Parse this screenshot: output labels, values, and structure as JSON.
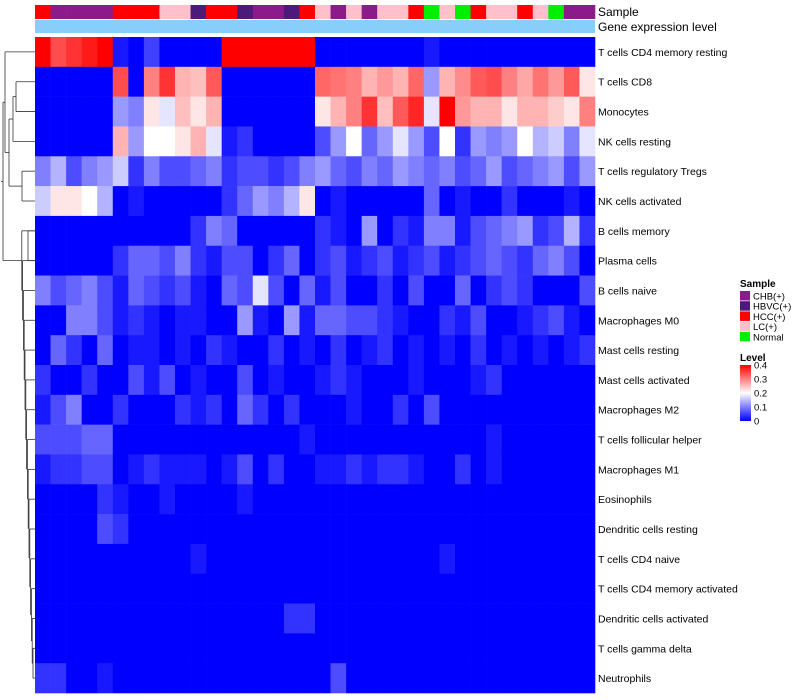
{
  "chart_data": {
    "type": "heatmap",
    "title": "",
    "annotation_tracks": [
      "Sample",
      "Gene expression level"
    ],
    "rows": [
      "T cells CD4 memory resting",
      "T cells CD8",
      "Monocytes",
      "NK cells resting",
      "T cells regulatory  Tregs",
      "NK cells activated",
      "B cells memory",
      "Plasma cells",
      "B cells naive",
      "Macrophages M0",
      "Mast cells resting",
      "Mast cells activated",
      "Macrophages M2",
      "T cells follicular helper",
      "Macrophages M1",
      "Eosinophils",
      "Dendritic cells resting",
      "T cells CD4 naive",
      "T cells CD4 memory activated",
      "Dendritic cells activated",
      "T cells gamma delta",
      "Neutrophils"
    ],
    "sample_groups": [
      "HCC(+)",
      "CHB(+)",
      "CHB(+)",
      "CHB(+)",
      "CHB(+)",
      "HCC(+)",
      "HCC(+)",
      "HCC(+)",
      "LC(+)",
      "LC(+)",
      "HBVC(+)",
      "HCC(+)",
      "HCC(+)",
      "HBVC(+)",
      "CHB(+)",
      "CHB(+)",
      "HBVC(+)",
      "HCC(+)",
      "LC(+)",
      "CHB(+)",
      "LC(+)",
      "CHB(+)",
      "LC(+)",
      "LC(+)",
      "HCC(+)",
      "Normal",
      "LC(+)",
      "Normal",
      "HCC(+)",
      "LC(+)",
      "LC(+)",
      "HCC(+)",
      "LC(+)",
      "Normal",
      "CHB(+)",
      "CHB(+)"
    ],
    "values": [
      [
        0.4,
        0.34,
        0.36,
        0.38,
        0.4,
        0.02,
        0.0,
        0.05,
        0.0,
        0.0,
        0.0,
        0.0,
        0.4,
        0.4,
        0.4,
        0.4,
        0.4,
        0.4,
        0.0,
        0.0,
        0.0,
        0.0,
        0.0,
        0.0,
        0.0,
        0.02,
        0.0,
        0.0,
        0.0,
        0.0,
        0.0,
        0.0,
        0.0,
        0.0,
        0.0,
        0.0
      ],
      [
        0.0,
        0.0,
        0.0,
        0.0,
        0.0,
        0.34,
        0.0,
        0.3,
        0.36,
        0.26,
        0.25,
        0.33,
        0.0,
        0.0,
        0.0,
        0.0,
        0.0,
        0.0,
        0.32,
        0.31,
        0.3,
        0.26,
        0.28,
        0.26,
        0.32,
        0.12,
        0.26,
        0.29,
        0.33,
        0.34,
        0.3,
        0.27,
        0.31,
        0.28,
        0.33,
        0.22
      ],
      [
        0.0,
        0.0,
        0.0,
        0.0,
        0.0,
        0.12,
        0.1,
        0.22,
        0.18,
        0.25,
        0.22,
        0.26,
        0.0,
        0.0,
        0.0,
        0.0,
        0.0,
        0.0,
        0.22,
        0.26,
        0.3,
        0.36,
        0.25,
        0.33,
        0.37,
        0.18,
        0.4,
        0.28,
        0.26,
        0.26,
        0.22,
        0.26,
        0.26,
        0.24,
        0.22,
        0.3
      ],
      [
        0.0,
        0.0,
        0.0,
        0.0,
        0.0,
        0.26,
        0.12,
        0.2,
        0.2,
        0.22,
        0.26,
        0.18,
        0.02,
        0.04,
        0.0,
        0.0,
        0.0,
        0.0,
        0.06,
        0.12,
        0.2,
        0.08,
        0.12,
        0.18,
        0.12,
        0.06,
        0.2,
        0.04,
        0.12,
        0.1,
        0.12,
        0.2,
        0.14,
        0.16,
        0.1,
        0.18
      ],
      [
        0.1,
        0.14,
        0.06,
        0.1,
        0.12,
        0.16,
        0.04,
        0.1,
        0.06,
        0.06,
        0.08,
        0.1,
        0.04,
        0.06,
        0.06,
        0.04,
        0.06,
        0.1,
        0.12,
        0.08,
        0.06,
        0.1,
        0.08,
        0.12,
        0.1,
        0.08,
        0.1,
        0.06,
        0.08,
        0.12,
        0.06,
        0.08,
        0.1,
        0.12,
        0.06,
        0.12
      ],
      [
        0.16,
        0.22,
        0.22,
        0.2,
        0.14,
        0.0,
        0.02,
        0.0,
        0.0,
        0.0,
        0.0,
        0.0,
        0.04,
        0.08,
        0.12,
        0.1,
        0.14,
        0.22,
        0.0,
        0.02,
        0.0,
        0.0,
        0.0,
        0.0,
        0.0,
        0.08,
        0.0,
        0.02,
        0.0,
        0.0,
        0.04,
        0.0,
        0.0,
        0.0,
        0.02,
        0.0
      ],
      [
        0.0,
        0.0,
        0.0,
        0.0,
        0.0,
        0.0,
        0.0,
        0.0,
        0.0,
        0.0,
        0.04,
        0.1,
        0.08,
        0.0,
        0.0,
        0.0,
        0.0,
        0.0,
        0.04,
        0.02,
        0.0,
        0.12,
        0.0,
        0.04,
        0.02,
        0.1,
        0.1,
        0.02,
        0.06,
        0.08,
        0.1,
        0.12,
        0.04,
        0.06,
        0.14,
        0.04
      ],
      [
        0.0,
        0.0,
        0.0,
        0.0,
        0.0,
        0.04,
        0.08,
        0.08,
        0.06,
        0.1,
        0.04,
        0.02,
        0.06,
        0.06,
        0.0,
        0.04,
        0.08,
        0.0,
        0.04,
        0.06,
        0.02,
        0.04,
        0.06,
        0.02,
        0.04,
        0.06,
        0.02,
        0.04,
        0.06,
        0.08,
        0.06,
        0.04,
        0.08,
        0.1,
        0.06,
        0.0
      ],
      [
        0.1,
        0.06,
        0.08,
        0.1,
        0.06,
        0.02,
        0.08,
        0.06,
        0.04,
        0.06,
        0.02,
        0.0,
        0.08,
        0.06,
        0.18,
        0.06,
        0.0,
        0.08,
        0.02,
        0.06,
        0.0,
        0.0,
        0.04,
        0.0,
        0.06,
        0.0,
        0.0,
        0.08,
        0.0,
        0.04,
        0.06,
        0.04,
        0.0,
        0.0,
        0.0,
        0.06
      ],
      [
        0.0,
        0.0,
        0.1,
        0.1,
        0.06,
        0.02,
        0.04,
        0.02,
        0.0,
        0.02,
        0.02,
        0.0,
        0.0,
        0.12,
        0.02,
        0.0,
        0.12,
        0.02,
        0.08,
        0.08,
        0.06,
        0.06,
        0.04,
        0.02,
        0.0,
        0.0,
        0.04,
        0.02,
        0.06,
        0.0,
        0.0,
        0.02,
        0.04,
        0.06,
        0.02,
        0.0
      ],
      [
        0.0,
        0.08,
        0.04,
        0.0,
        0.08,
        0.0,
        0.02,
        0.02,
        0.0,
        0.02,
        0.0,
        0.04,
        0.02,
        0.0,
        0.0,
        0.04,
        0.0,
        0.02,
        0.0,
        0.04,
        0.0,
        0.02,
        0.04,
        0.0,
        0.02,
        0.0,
        0.02,
        0.0,
        0.04,
        0.0,
        0.02,
        0.0,
        0.02,
        0.0,
        0.02,
        0.04
      ],
      [
        0.04,
        0.0,
        0.0,
        0.04,
        0.0,
        0.0,
        0.06,
        0.02,
        0.06,
        0.0,
        0.02,
        0.0,
        0.0,
        0.06,
        0.0,
        0.02,
        0.0,
        0.0,
        0.02,
        0.04,
        0.02,
        0.0,
        0.0,
        0.0,
        0.02,
        0.0,
        0.0,
        0.0,
        0.02,
        0.04,
        0.0,
        0.0,
        0.0,
        0.0,
        0.0,
        0.0
      ],
      [
        0.02,
        0.06,
        0.1,
        0.0,
        0.0,
        0.04,
        0.0,
        0.0,
        0.0,
        0.04,
        0.02,
        0.04,
        0.0,
        0.08,
        0.04,
        0.0,
        0.04,
        0.0,
        0.0,
        0.0,
        0.02,
        0.0,
        0.0,
        0.04,
        0.0,
        0.06,
        0.0,
        0.0,
        0.0,
        0.0,
        0.0,
        0.0,
        0.0,
        0.0,
        0.0,
        0.0
      ],
      [
        0.06,
        0.06,
        0.06,
        0.08,
        0.08,
        0.0,
        0.0,
        0.0,
        0.0,
        0.0,
        0.0,
        0.0,
        0.0,
        0.0,
        0.0,
        0.0,
        0.0,
        0.02,
        0.0,
        0.0,
        0.0,
        0.0,
        0.0,
        0.0,
        0.0,
        0.0,
        0.0,
        0.0,
        0.0,
        0.02,
        0.0,
        0.0,
        0.0,
        0.0,
        0.0,
        0.0
      ],
      [
        0.02,
        0.04,
        0.04,
        0.06,
        0.06,
        0.0,
        0.02,
        0.04,
        0.02,
        0.02,
        0.02,
        0.0,
        0.02,
        0.06,
        0.0,
        0.04,
        0.0,
        0.0,
        0.02,
        0.02,
        0.04,
        0.02,
        0.04,
        0.04,
        0.02,
        0.0,
        0.0,
        0.04,
        0.0,
        0.02,
        0.0,
        0.0,
        0.0,
        0.0,
        0.0,
        0.0
      ],
      [
        0.0,
        0.0,
        0.0,
        0.0,
        0.04,
        0.02,
        0.0,
        0.0,
        0.02,
        0.0,
        0.0,
        0.0,
        0.0,
        0.02,
        0.0,
        0.0,
        0.0,
        0.0,
        0.0,
        0.0,
        0.0,
        0.0,
        0.0,
        0.0,
        0.0,
        0.0,
        0.0,
        0.0,
        0.0,
        0.0,
        0.0,
        0.0,
        0.0,
        0.0,
        0.0,
        0.0
      ],
      [
        0.0,
        0.0,
        0.0,
        0.0,
        0.06,
        0.04,
        0.0,
        0.0,
        0.0,
        0.0,
        0.0,
        0.0,
        0.0,
        0.0,
        0.0,
        0.0,
        0.0,
        0.0,
        0.0,
        0.0,
        0.0,
        0.0,
        0.0,
        0.0,
        0.0,
        0.0,
        0.0,
        0.0,
        0.0,
        0.0,
        0.0,
        0.0,
        0.0,
        0.0,
        0.0,
        0.0
      ],
      [
        0.0,
        0.0,
        0.0,
        0.0,
        0.0,
        0.0,
        0.0,
        0.0,
        0.0,
        0.0,
        0.02,
        0.0,
        0.0,
        0.0,
        0.0,
        0.0,
        0.0,
        0.0,
        0.0,
        0.0,
        0.0,
        0.0,
        0.0,
        0.0,
        0.0,
        0.0,
        0.02,
        0.0,
        0.0,
        0.0,
        0.0,
        0.0,
        0.0,
        0.0,
        0.0,
        0.0
      ],
      [
        0.0,
        0.0,
        0.0,
        0.0,
        0.0,
        0.0,
        0.0,
        0.0,
        0.0,
        0.0,
        0.0,
        0.0,
        0.0,
        0.0,
        0.0,
        0.0,
        0.0,
        0.0,
        0.0,
        0.0,
        0.0,
        0.0,
        0.0,
        0.0,
        0.0,
        0.0,
        0.0,
        0.0,
        0.0,
        0.0,
        0.0,
        0.0,
        0.0,
        0.0,
        0.0,
        0.0
      ],
      [
        0.0,
        0.0,
        0.0,
        0.0,
        0.0,
        0.0,
        0.0,
        0.0,
        0.0,
        0.0,
        0.0,
        0.0,
        0.0,
        0.0,
        0.0,
        0.0,
        0.04,
        0.04,
        0.0,
        0.0,
        0.0,
        0.0,
        0.0,
        0.0,
        0.0,
        0.0,
        0.0,
        0.0,
        0.0,
        0.0,
        0.0,
        0.0,
        0.0,
        0.0,
        0.0,
        0.0
      ],
      [
        0.0,
        0.0,
        0.0,
        0.0,
        0.0,
        0.0,
        0.0,
        0.0,
        0.0,
        0.0,
        0.0,
        0.0,
        0.0,
        0.0,
        0.0,
        0.0,
        0.0,
        0.0,
        0.0,
        0.0,
        0.0,
        0.0,
        0.0,
        0.0,
        0.0,
        0.0,
        0.0,
        0.0,
        0.0,
        0.0,
        0.0,
        0.0,
        0.0,
        0.0,
        0.0,
        0.0
      ],
      [
        0.04,
        0.04,
        0.0,
        0.0,
        0.02,
        0.0,
        0.0,
        0.0,
        0.0,
        0.0,
        0.0,
        0.0,
        0.0,
        0.0,
        0.0,
        0.0,
        0.0,
        0.0,
        0.0,
        0.06,
        0.0,
        0.0,
        0.0,
        0.0,
        0.0,
        0.0,
        0.0,
        0.0,
        0.0,
        0.0,
        0.0,
        0.0,
        0.0,
        0.0,
        0.0,
        0.0
      ]
    ],
    "color_scale": {
      "min": 0,
      "max": 0.4,
      "colors": [
        "#0000ff",
        "#ffffff",
        "#ff0000"
      ],
      "ticks": [
        "0",
        "0.1",
        "0.2",
        "0.3",
        "0.4"
      ]
    },
    "legend": {
      "position": "right",
      "sample_title": "Sample",
      "sample_entries": [
        {
          "label": "CHB(+)",
          "color": "#8b1a8b"
        },
        {
          "label": "HBVC(+)",
          "color": "#4b1a7a"
        },
        {
          "label": "HCC(+)",
          "color": "#ff0000"
        },
        {
          "label": "LC(+)",
          "color": "#ffc0cb"
        },
        {
          "label": "Normal",
          "color": "#00ee00"
        }
      ],
      "level_title": "Level"
    },
    "expression_bar_color": "#87cefa"
  }
}
